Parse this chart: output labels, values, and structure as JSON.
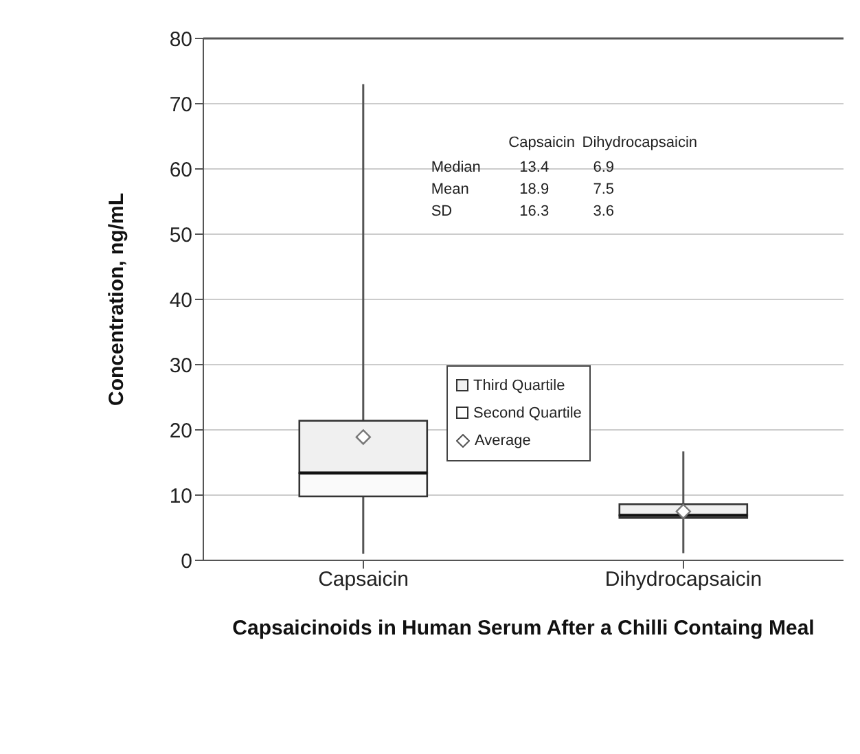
{
  "chart_data": {
    "type": "box",
    "xlabel": "Capsaicinoids in Human Serum After a Chilli Containg Meal",
    "ylabel": "Concentration, ng/mL",
    "categories": [
      "Capsaicin",
      "Dihydrocapsaicin"
    ],
    "boxes": [
      {
        "low": 1,
        "q1": 9.8,
        "median": 13.4,
        "q3": 21.4,
        "high": 73,
        "mean": 18.9
      },
      {
        "low": 1.1,
        "q1": 6.5,
        "median": 6.9,
        "q3": 8.6,
        "high": 16.7,
        "mean": 7.5
      }
    ],
    "color": "#f0f0f0",
    "ylim": [
      0,
      80
    ],
    "yticks": [
      0,
      10,
      20,
      30,
      40,
      50,
      60,
      70,
      80
    ],
    "grid": "y",
    "annotations": [
      "Capsaicin",
      "Dihydrocapsaicin",
      "Median",
      "13.4",
      "6.9",
      "Mean",
      "18.9",
      "7.5",
      "SD",
      "16.3",
      "3.6",
      "Third Quartile",
      "Second Quartile",
      "Average"
    ]
  }
}
